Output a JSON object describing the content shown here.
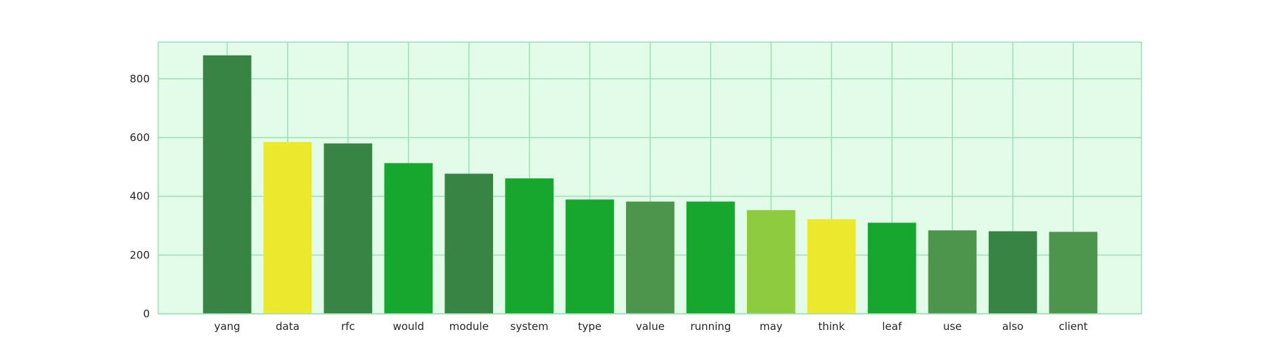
{
  "chart_data": {
    "type": "bar",
    "title": "",
    "xlabel": "",
    "ylabel": "",
    "categories": [
      "yang",
      "data",
      "rfc",
      "would",
      "module",
      "system",
      "type",
      "value",
      "running",
      "may",
      "think",
      "leaf",
      "use",
      "also",
      "client"
    ],
    "values": [
      880,
      585,
      580,
      513,
      477,
      461,
      389,
      382,
      382,
      353,
      322,
      310,
      284,
      281,
      279
    ],
    "bar_colors": [
      "#388444",
      "#ECE82D",
      "#388444",
      "#18A72E",
      "#388444",
      "#18A72E",
      "#18A72E",
      "#4D954C",
      "#18A72E",
      "#8FCB3F",
      "#ECE82D",
      "#18A72E",
      "#4D954C",
      "#388444",
      "#4D954C"
    ],
    "ylim": [
      0,
      925
    ],
    "yticks": [
      0,
      200,
      400,
      600,
      800
    ],
    "grid": true,
    "legend": "none",
    "colors": {
      "plot_background": "#E3FCEA",
      "grid": "#9CE0B7",
      "frame": "#9CE0B7"
    }
  }
}
